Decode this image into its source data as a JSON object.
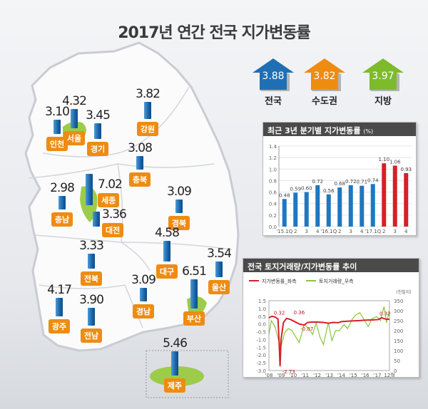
{
  "title": "2017년 연간 전국 지가변동률",
  "summary": [
    {
      "label": "전국",
      "value": "3.88",
      "color": "#1f6fb4"
    },
    {
      "label": "수도권",
      "value": "3.82",
      "color": "#ee8c12"
    },
    {
      "label": "지방",
      "value": "3.97",
      "color": "#7dbb2a"
    }
  ],
  "regions": [
    {
      "name": "인천",
      "value": 3.1,
      "display": "3.10"
    },
    {
      "name": "서울",
      "value": 4.32,
      "display": "4.32"
    },
    {
      "name": "경기",
      "value": 3.45,
      "display": "3.45"
    },
    {
      "name": "강원",
      "value": 3.82,
      "display": "3.82"
    },
    {
      "name": "충북",
      "value": 3.08,
      "display": "3.08"
    },
    {
      "name": "세종",
      "value": 7.02,
      "display": "7.02"
    },
    {
      "name": "충남",
      "value": 2.98,
      "display": "2.98"
    },
    {
      "name": "대전",
      "value": 3.36,
      "display": "3.36"
    },
    {
      "name": "경북",
      "value": 3.09,
      "display": "3.09"
    },
    {
      "name": "전북",
      "value": 3.33,
      "display": "3.33"
    },
    {
      "name": "대구",
      "value": 4.58,
      "display": "4.58"
    },
    {
      "name": "울산",
      "value": 3.54,
      "display": "3.54"
    },
    {
      "name": "경남",
      "value": 3.09,
      "display": "3.09"
    },
    {
      "name": "부산",
      "value": 6.51,
      "display": "6.51"
    },
    {
      "name": "광주",
      "value": 4.17,
      "display": "4.17"
    },
    {
      "name": "전남",
      "value": 3.9,
      "display": "3.90"
    },
    {
      "name": "제주",
      "value": 5.46,
      "display": "5.46"
    }
  ],
  "chart_data": [
    {
      "type": "bar",
      "title": "최근 3년 분기별 지가변동률",
      "unit": "(%)",
      "categories": [
        "'15.1Q",
        "2",
        "3",
        "4",
        "'16.1Q",
        "2",
        "3",
        "4",
        "'17.1Q",
        "2",
        "3",
        "4"
      ],
      "values": [
        0.48,
        0.59,
        0.6,
        0.72,
        0.56,
        0.68,
        0.72,
        0.71,
        0.74,
        1.1,
        1.06,
        0.93
      ],
      "labels": [
        "0.48",
        "0.59",
        "0.60",
        "0.72",
        "0.56",
        "0.68",
        "0.72",
        "0.71",
        "0.74",
        "1.10",
        "1.06",
        "0.93"
      ],
      "highlight_from_index": 9,
      "colors": {
        "normal": "#1f77c0",
        "highlight": "#d62027"
      },
      "ylim": [
        0,
        1.4
      ],
      "yticks": [
        "0.0",
        "0.2",
        "0.4",
        "0.6",
        "0.8",
        "1.0",
        "1.2",
        "1.4"
      ],
      "grid": true
    },
    {
      "type": "line",
      "title": "전국 토지거래량/지가변동률 추이",
      "legend": [
        "지가변동률_좌측",
        "토지거래량_우측"
      ],
      "legend_position": "top-left",
      "right_unit": "(천필지)",
      "xticks": [
        "'08",
        "'09",
        "'10",
        "'11",
        "'12",
        "'13",
        "'14",
        "'15",
        "'16",
        "'17",
        "12월"
      ],
      "ylim_left": [
        -3.0,
        1.5
      ],
      "yticks_left": [
        "1.5",
        "1.0",
        "0.5",
        "0.0",
        "-0.5",
        "-1.0",
        "-1.5",
        "-2.0",
        "-2.5",
        "-3.0"
      ],
      "ylim_right": [
        0,
        350
      ],
      "yticks_right": [
        "350",
        "300",
        "250",
        "200",
        "150",
        "100",
        "50",
        "0"
      ],
      "series": [
        {
          "name": "지가변동률_좌측",
          "axis": "left",
          "color": "#d62027",
          "x": [
            2008.0,
            2008.25,
            2008.5,
            2008.75,
            2008.83,
            2008.92,
            2009.0,
            2009.2,
            2009.45,
            2009.75,
            2010.0,
            2010.5,
            2010.9,
            2011.2,
            2011.6,
            2012.0,
            2012.5,
            2012.9,
            2013.3,
            2013.7,
            2014.0,
            2014.5,
            2015.0,
            2015.5,
            2016.0,
            2016.5,
            2017.0,
            2017.3,
            2017.6,
            2017.95
          ],
          "y": [
            0.4,
            0.5,
            0.45,
            0.32,
            -1.0,
            -2.73,
            -1.0,
            0.1,
            0.36,
            0.3,
            0.2,
            0.0,
            -0.07,
            0.1,
            0.12,
            0.12,
            0.1,
            0.05,
            0.1,
            0.08,
            0.15,
            0.18,
            0.2,
            0.22,
            0.25,
            0.26,
            0.28,
            0.4,
            0.32,
            0.3
          ]
        },
        {
          "name": "토지거래량_우측",
          "axis": "right",
          "color": "#8cc43f",
          "x": [
            2008.0,
            2008.2,
            2008.5,
            2008.8,
            2009.0,
            2009.3,
            2009.6,
            2009.9,
            2010.2,
            2010.5,
            2010.9,
            2011.3,
            2011.6,
            2011.9,
            2012.2,
            2012.5,
            2012.9,
            2013.2,
            2013.5,
            2013.8,
            2014.2,
            2014.5,
            2014.9,
            2015.2,
            2015.5,
            2015.9,
            2016.2,
            2016.5,
            2016.9,
            2017.2,
            2017.5,
            2017.7,
            2017.95
          ],
          "y": [
            180,
            250,
            220,
            150,
            120,
            190,
            210,
            200,
            170,
            140,
            230,
            210,
            180,
            240,
            170,
            130,
            240,
            150,
            200,
            200,
            230,
            210,
            260,
            280,
            290,
            250,
            220,
            260,
            270,
            250,
            320,
            240,
            300
          ]
        }
      ],
      "annotations": [
        "0.32",
        "0.36",
        "-2.73",
        "-0.07",
        "0.32"
      ]
    }
  ]
}
